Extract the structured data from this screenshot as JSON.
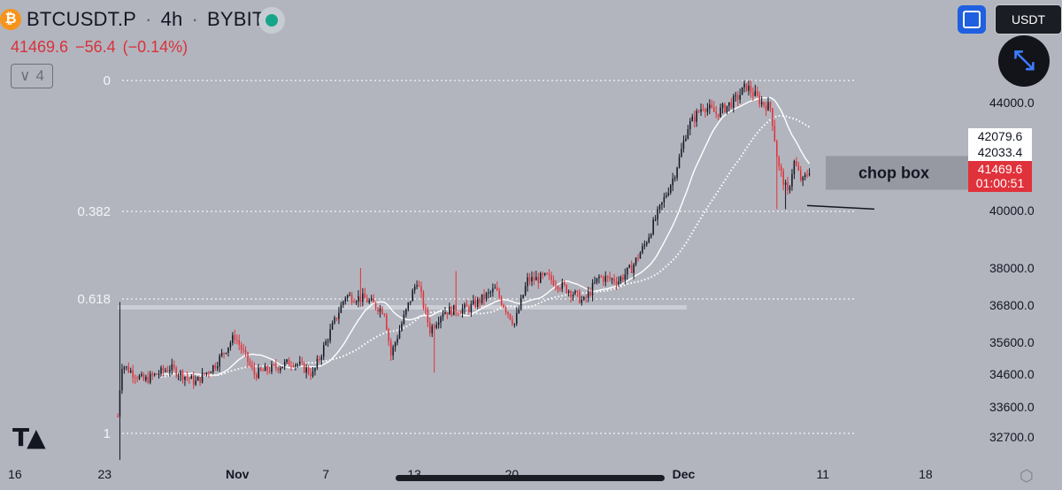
{
  "header": {
    "symbol": "BTCUSDT.P",
    "interval": "4h",
    "exchange": "BYBIT",
    "coin_icon": "₿",
    "last": "41469.6",
    "change": "−56.4",
    "change_pct": "(−0.14%)",
    "collapse_count": "4"
  },
  "toolbar": {
    "currency": "USDT"
  },
  "colors": {
    "up": "#131722",
    "down": "#e0323b",
    "ma": "#ffffff",
    "bg": "#b2b5be"
  },
  "chart_data": {
    "type": "candlestick",
    "interval": "4h",
    "y_ticks": [
      44000,
      42079.6,
      42033.4,
      41469.6,
      40000,
      38000,
      36800,
      35600,
      34600,
      33600,
      32700
    ],
    "y_tick_labels": [
      "44000.0",
      "42079.6",
      "42033.4",
      "41469.6",
      "40000.0",
      "38000.0",
      "36800.0",
      "35600.0",
      "34600.0",
      "33600.0",
      "32700.0"
    ],
    "x_ticks": [
      "16",
      "23",
      "Nov",
      "7",
      "13",
      "20",
      "Dec",
      "11",
      "18"
    ],
    "price_labels": [
      {
        "value": "42079.6",
        "style": "white"
      },
      {
        "value": "42033.4",
        "style": "white"
      },
      {
        "value": "41469.6",
        "style": "red"
      },
      {
        "value": "01:00:51",
        "style": "red"
      }
    ],
    "fib_levels": [
      {
        "label": "0",
        "price": 44800
      },
      {
        "label": "0.382",
        "price": 39970
      },
      {
        "label": "0.618",
        "price": 37000
      },
      {
        "label": "1",
        "price": 32780
      }
    ],
    "annotation": {
      "text": "chop box",
      "price_top": 42050,
      "price_bottom": 40750
    },
    "support_line": 40050,
    "anchors": [
      {
        "d": 0,
        "p": 33300
      },
      {
        "d": 0.3,
        "p": 34900
      },
      {
        "d": 2,
        "p": 34400
      },
      {
        "d": 4,
        "p": 34800
      },
      {
        "d": 6,
        "p": 34350
      },
      {
        "d": 7.5,
        "p": 34900
      },
      {
        "d": 9,
        "p": 35800
      },
      {
        "d": 10.5,
        "p": 34600
      },
      {
        "d": 12,
        "p": 34800
      },
      {
        "d": 13.5,
        "p": 35000
      },
      {
        "d": 15,
        "p": 34600
      },
      {
        "d": 16.5,
        "p": 36100
      },
      {
        "d": 17.5,
        "p": 37100
      },
      {
        "d": 19,
        "p": 37000
      },
      {
        "d": 20.5,
        "p": 36600
      },
      {
        "d": 21,
        "p": 35200
      },
      {
        "d": 22,
        "p": 36400
      },
      {
        "d": 23,
        "p": 37600
      },
      {
        "d": 24,
        "p": 36000
      },
      {
        "d": 25,
        "p": 36600
      },
      {
        "d": 27,
        "p": 36700
      },
      {
        "d": 29,
        "p": 37300
      },
      {
        "d": 30.5,
        "p": 36200
      },
      {
        "d": 31.5,
        "p": 37600
      },
      {
        "d": 33,
        "p": 37700
      },
      {
        "d": 35,
        "p": 37200
      },
      {
        "d": 35.8,
        "p": 36900
      },
      {
        "d": 37,
        "p": 37700
      },
      {
        "d": 38.5,
        "p": 37600
      },
      {
        "d": 39.5,
        "p": 38000
      },
      {
        "d": 40.5,
        "p": 38800
      },
      {
        "d": 41.8,
        "p": 40200
      },
      {
        "d": 42.8,
        "p": 41300
      },
      {
        "d": 43.8,
        "p": 43100
      },
      {
        "d": 45,
        "p": 43900
      },
      {
        "d": 46,
        "p": 43600
      },
      {
        "d": 47.5,
        "p": 44100
      },
      {
        "d": 48.3,
        "p": 44600
      },
      {
        "d": 49.5,
        "p": 44000
      },
      {
        "d": 50.2,
        "p": 43800
      },
      {
        "d": 50.8,
        "p": 41600
      },
      {
        "d": 51.5,
        "p": 40600
      },
      {
        "d": 52,
        "p": 41800
      },
      {
        "d": 52.6,
        "p": 41000
      },
      {
        "d": 53.2,
        "p": 41500
      }
    ]
  }
}
